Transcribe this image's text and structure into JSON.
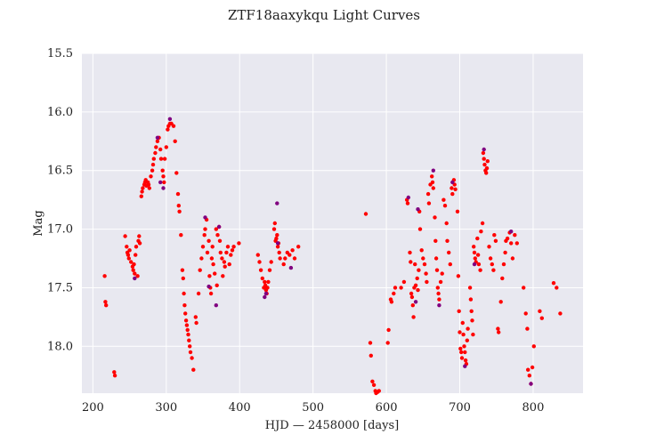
{
  "chart_data": {
    "type": "scatter",
    "title": "ZTF18aaxykqu Light Curves",
    "xlabel": "HJD — 2458000 [days]",
    "ylabel": "Mag",
    "xlim": [
      185,
      868
    ],
    "ylim": [
      18.4,
      15.5
    ],
    "y_inverted": true,
    "x_ticks": [
      200,
      300,
      400,
      500,
      600,
      700,
      800
    ],
    "x_tick_labels": [
      "200",
      "300",
      "400",
      "500",
      "600",
      "700",
      "800"
    ],
    "y_ticks": [
      15.5,
      16.0,
      16.5,
      17.0,
      17.5,
      18.0
    ],
    "y_tick_labels": [
      "15.5",
      "16.0",
      "16.5",
      "17.0",
      "17.5",
      "18.0"
    ],
    "grid": true,
    "background": "#e8e8f0",
    "series": [
      {
        "color": "#ff0000",
        "points": [
          [
            216,
            17.4
          ],
          [
            217,
            17.62
          ],
          [
            218,
            17.65
          ],
          [
            229,
            18.22
          ],
          [
            230,
            18.25
          ],
          [
            244,
            17.06
          ],
          [
            246,
            17.15
          ],
          [
            247,
            17.2
          ],
          [
            248,
            17.22
          ],
          [
            249,
            17.25
          ],
          [
            250,
            17.18
          ],
          [
            252,
            17.28
          ],
          [
            254,
            17.32
          ],
          [
            255,
            17.35
          ],
          [
            256,
            17.3
          ],
          [
            257,
            17.38
          ],
          [
            258,
            17.22
          ],
          [
            259,
            17.15
          ],
          [
            261,
            17.4
          ],
          [
            262,
            17.1
          ],
          [
            263,
            17.06
          ],
          [
            264,
            17.12
          ],
          [
            266,
            16.72
          ],
          [
            267,
            16.68
          ],
          [
            268,
            16.65
          ],
          [
            270,
            16.62
          ],
          [
            271,
            16.6
          ],
          [
            272,
            16.58
          ],
          [
            273,
            16.63
          ],
          [
            275,
            16.6
          ],
          [
            276,
            16.62
          ],
          [
            277,
            16.65
          ],
          [
            279,
            16.55
          ],
          [
            281,
            16.5
          ],
          [
            282,
            16.45
          ],
          [
            283,
            16.4
          ],
          [
            285,
            16.35
          ],
          [
            286,
            16.3
          ],
          [
            288,
            16.25
          ],
          [
            290,
            16.22
          ],
          [
            292,
            16.32
          ],
          [
            293,
            16.4
          ],
          [
            295,
            16.5
          ],
          [
            296,
            16.55
          ],
          [
            297,
            16.6
          ],
          [
            298,
            16.4
          ],
          [
            300,
            16.3
          ],
          [
            302,
            16.15
          ],
          [
            303,
            16.12
          ],
          [
            305,
            16.1
          ],
          [
            307,
            16.1
          ],
          [
            310,
            16.12
          ],
          [
            312,
            16.25
          ],
          [
            314,
            16.52
          ],
          [
            316,
            16.7
          ],
          [
            317,
            16.8
          ],
          [
            318,
            16.85
          ],
          [
            320,
            17.05
          ],
          [
            322,
            17.35
          ],
          [
            323,
            17.42
          ],
          [
            324,
            17.55
          ],
          [
            325,
            17.65
          ],
          [
            326,
            17.72
          ],
          [
            327,
            17.78
          ],
          [
            328,
            17.82
          ],
          [
            329,
            17.86
          ],
          [
            330,
            17.9
          ],
          [
            331,
            17.95
          ],
          [
            332,
            18.0
          ],
          [
            333,
            18.05
          ],
          [
            335,
            18.1
          ],
          [
            337,
            18.2
          ],
          [
            340,
            17.75
          ],
          [
            341,
            17.8
          ],
          [
            344,
            17.55
          ],
          [
            346,
            17.35
          ],
          [
            348,
            17.25
          ],
          [
            350,
            17.15
          ],
          [
            352,
            17.05
          ],
          [
            353,
            17.0
          ],
          [
            355,
            16.92
          ],
          [
            356,
            17.2
          ],
          [
            358,
            17.1
          ],
          [
            359,
            17.4
          ],
          [
            360,
            17.5
          ],
          [
            361,
            17.55
          ],
          [
            362,
            17.25
          ],
          [
            363,
            17.15
          ],
          [
            364,
            17.3
          ],
          [
            366,
            17.38
          ],
          [
            368,
            17.0
          ],
          [
            369,
            17.48
          ],
          [
            370,
            17.05
          ],
          [
            372,
            16.98
          ],
          [
            373,
            17.1
          ],
          [
            374,
            17.2
          ],
          [
            376,
            17.25
          ],
          [
            377,
            17.4
          ],
          [
            379,
            17.28
          ],
          [
            380,
            17.32
          ],
          [
            382,
            17.2
          ],
          [
            384,
            17.15
          ],
          [
            386,
            17.3
          ],
          [
            388,
            17.22
          ],
          [
            390,
            17.18
          ],
          [
            392,
            17.15
          ],
          [
            399,
            17.12
          ],
          [
            425,
            17.22
          ],
          [
            427,
            17.28
          ],
          [
            429,
            17.35
          ],
          [
            431,
            17.42
          ],
          [
            433,
            17.5
          ],
          [
            434,
            17.45
          ],
          [
            435,
            17.48
          ],
          [
            436,
            17.52
          ],
          [
            437,
            17.55
          ],
          [
            438,
            17.5
          ],
          [
            439,
            17.45
          ],
          [
            441,
            17.35
          ],
          [
            443,
            17.28
          ],
          [
            447,
            17.0
          ],
          [
            448,
            16.95
          ],
          [
            449,
            17.1
          ],
          [
            450,
            17.08
          ],
          [
            451,
            17.05
          ],
          [
            452,
            17.15
          ],
          [
            453,
            17.12
          ],
          [
            454,
            17.2
          ],
          [
            455,
            17.25
          ],
          [
            460,
            17.3
          ],
          [
            462,
            17.25
          ],
          [
            465,
            17.2
          ],
          [
            468,
            17.22
          ],
          [
            472,
            17.18
          ],
          [
            475,
            17.25
          ],
          [
            480,
            17.15
          ],
          [
            572,
            16.87
          ],
          [
            578,
            17.97
          ],
          [
            579,
            18.08
          ],
          [
            581,
            18.3
          ],
          [
            583,
            18.33
          ],
          [
            585,
            18.38
          ],
          [
            586,
            18.4
          ],
          [
            588,
            18.39
          ],
          [
            590,
            18.38
          ],
          [
            602,
            17.97
          ],
          [
            603,
            17.86
          ],
          [
            606,
            17.6
          ],
          [
            607,
            17.62
          ],
          [
            610,
            17.55
          ],
          [
            612,
            17.5
          ],
          [
            620,
            17.5
          ],
          [
            624,
            17.45
          ],
          [
            628,
            16.75
          ],
          [
            629,
            16.78
          ],
          [
            632,
            17.2
          ],
          [
            633,
            17.28
          ],
          [
            634,
            17.55
          ],
          [
            635,
            17.58
          ],
          [
            636,
            17.65
          ],
          [
            637,
            17.75
          ],
          [
            638,
            17.5
          ],
          [
            639,
            17.3
          ],
          [
            640,
            17.48
          ],
          [
            642,
            17.42
          ],
          [
            643,
            17.52
          ],
          [
            644,
            17.35
          ],
          [
            645,
            16.85
          ],
          [
            646,
            17.0
          ],
          [
            648,
            17.18
          ],
          [
            650,
            17.25
          ],
          [
            652,
            17.3
          ],
          [
            654,
            17.38
          ],
          [
            655,
            17.45
          ],
          [
            657,
            16.7
          ],
          [
            658,
            16.78
          ],
          [
            660,
            16.62
          ],
          [
            662,
            16.55
          ],
          [
            663,
            16.6
          ],
          [
            664,
            16.65
          ],
          [
            666,
            16.9
          ],
          [
            667,
            17.1
          ],
          [
            668,
            17.25
          ],
          [
            669,
            17.35
          ],
          [
            670,
            17.5
          ],
          [
            671,
            17.55
          ],
          [
            672,
            17.6
          ],
          [
            674,
            17.45
          ],
          [
            676,
            17.38
          ],
          [
            678,
            16.75
          ],
          [
            680,
            16.8
          ],
          [
            682,
            16.95
          ],
          [
            683,
            17.1
          ],
          [
            685,
            17.2
          ],
          [
            687,
            17.3
          ],
          [
            689,
            16.65
          ],
          [
            690,
            16.7
          ],
          [
            692,
            16.58
          ],
          [
            693,
            16.62
          ],
          [
            694,
            16.66
          ],
          [
            697,
            16.85
          ],
          [
            698,
            17.4
          ],
          [
            699,
            17.7
          ],
          [
            700,
            17.88
          ],
          [
            701,
            18.02
          ],
          [
            702,
            18.05
          ],
          [
            703,
            18.1
          ],
          [
            704,
            17.8
          ],
          [
            705,
            17.9
          ],
          [
            706,
            18.0
          ],
          [
            707,
            18.05
          ],
          [
            708,
            18.12
          ],
          [
            709,
            18.15
          ],
          [
            710,
            17.95
          ],
          [
            711,
            17.85
          ],
          [
            714,
            17.5
          ],
          [
            715,
            17.6
          ],
          [
            716,
            17.7
          ],
          [
            717,
            17.78
          ],
          [
            718,
            17.9
          ],
          [
            719,
            17.15
          ],
          [
            720,
            17.2
          ],
          [
            721,
            17.25
          ],
          [
            722,
            17.28
          ],
          [
            724,
            17.08
          ],
          [
            725,
            17.22
          ],
          [
            726,
            17.3
          ],
          [
            728,
            17.35
          ],
          [
            729,
            17.02
          ],
          [
            731,
            16.95
          ],
          [
            732,
            16.35
          ],
          [
            733,
            16.4
          ],
          [
            734,
            16.45
          ],
          [
            735,
            16.5
          ],
          [
            736,
            16.52
          ],
          [
            737,
            16.48
          ],
          [
            738,
            16.42
          ],
          [
            740,
            17.15
          ],
          [
            742,
            17.25
          ],
          [
            744,
            17.3
          ],
          [
            746,
            17.35
          ],
          [
            747,
            17.05
          ],
          [
            749,
            17.1
          ],
          [
            752,
            17.85
          ],
          [
            753,
            17.88
          ],
          [
            756,
            17.62
          ],
          [
            758,
            17.42
          ],
          [
            760,
            17.3
          ],
          [
            762,
            17.2
          ],
          [
            763,
            17.1
          ],
          [
            765,
            17.08
          ],
          [
            768,
            17.03
          ],
          [
            770,
            17.12
          ],
          [
            772,
            17.25
          ],
          [
            775,
            17.05
          ],
          [
            778,
            17.12
          ],
          [
            787,
            17.5
          ],
          [
            790,
            17.72
          ],
          [
            792,
            17.85
          ],
          [
            793,
            18.2
          ],
          [
            795,
            18.25
          ],
          [
            797,
            18.32
          ],
          [
            799,
            18.18
          ],
          [
            801,
            18.0
          ],
          [
            809,
            17.7
          ],
          [
            812,
            17.76
          ],
          [
            828,
            17.46
          ],
          [
            832,
            17.5
          ],
          [
            837,
            17.72
          ]
        ]
      },
      {
        "color": "#800080",
        "points": [
          [
            257,
            17.42
          ],
          [
            288,
            16.22
          ],
          [
            292,
            16.6
          ],
          [
            296,
            16.65
          ],
          [
            305,
            16.06
          ],
          [
            353,
            16.9
          ],
          [
            358,
            17.49
          ],
          [
            368,
            17.65
          ],
          [
            372,
            16.98
          ],
          [
            434,
            17.58
          ],
          [
            436,
            17.55
          ],
          [
            451,
            16.78
          ],
          [
            452,
            17.12
          ],
          [
            470,
            17.33
          ],
          [
            630,
            16.73
          ],
          [
            640,
            17.62
          ],
          [
            643,
            16.83
          ],
          [
            664,
            16.5
          ],
          [
            672,
            17.65
          ],
          [
            690,
            16.6
          ],
          [
            707,
            18.17
          ],
          [
            720,
            17.3
          ],
          [
            733,
            16.32
          ],
          [
            770,
            17.02
          ],
          [
            797,
            18.32
          ]
        ]
      }
    ]
  }
}
